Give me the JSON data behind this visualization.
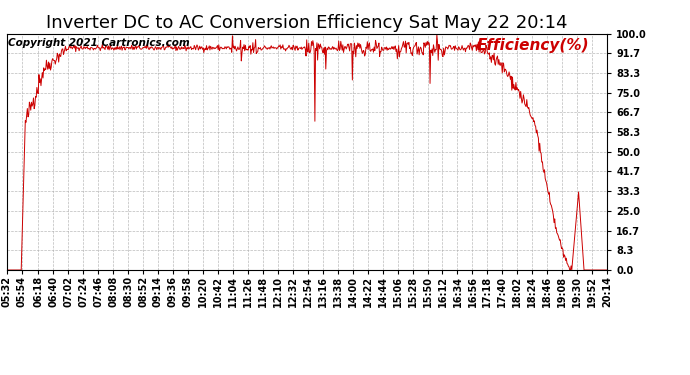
{
  "title": "Inverter DC to AC Conversion Efficiency Sat May 22 20:14",
  "copyright_text": "Copyright 2021 Cartronics.com",
  "legend_label": "Efficiency(%)",
  "line_color": "#cc0000",
  "background_color": "#ffffff",
  "plot_bg_color": "#ffffff",
  "grid_color": "#aaaaaa",
  "ylim": [
    0.0,
    100.0
  ],
  "yticks": [
    0.0,
    8.3,
    16.7,
    25.0,
    33.3,
    41.7,
    50.0,
    58.3,
    66.7,
    75.0,
    83.3,
    91.7,
    100.0
  ],
  "xtick_labels": [
    "05:32",
    "05:54",
    "06:18",
    "06:40",
    "07:02",
    "07:24",
    "07:46",
    "08:08",
    "08:30",
    "08:52",
    "09:14",
    "09:36",
    "09:58",
    "10:20",
    "10:42",
    "11:04",
    "11:26",
    "11:48",
    "12:10",
    "12:32",
    "12:54",
    "13:16",
    "13:38",
    "14:00",
    "14:22",
    "14:44",
    "15:06",
    "15:28",
    "15:50",
    "16:12",
    "16:34",
    "16:56",
    "17:18",
    "17:40",
    "18:02",
    "18:24",
    "18:46",
    "19:08",
    "19:30",
    "19:52",
    "20:14"
  ],
  "title_fontsize": 13,
  "copyright_fontsize": 7.5,
  "legend_fontsize": 11,
  "tick_fontsize": 7,
  "figsize": [
    6.9,
    3.75
  ],
  "dpi": 100
}
